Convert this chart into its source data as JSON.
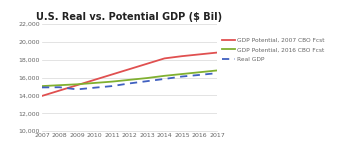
{
  "title": "U.S. Real vs. Potential GDP ($ Bil)",
  "years": [
    2007,
    2008,
    2009,
    2010,
    2011,
    2012,
    2013,
    2014,
    2015,
    2016,
    2017
  ],
  "gdp_potential_2007": [
    13950,
    14550,
    15150,
    15750,
    16350,
    16950,
    17550,
    18150,
    18400,
    18600,
    18800
  ],
  "gdp_potential_2016": [
    15050,
    15150,
    15250,
    15400,
    15550,
    15750,
    15950,
    16200,
    16400,
    16600,
    16800
  ],
  "real_gdp": [
    14900,
    14920,
    14680,
    14870,
    15050,
    15350,
    15600,
    15850,
    16120,
    16300,
    16500
  ],
  "ylim": [
    10000,
    22000
  ],
  "yticks": [
    10000,
    12000,
    14000,
    16000,
    18000,
    20000,
    22000
  ],
  "color_2007": "#e05050",
  "color_2016": "#80b030",
  "color_real": "#4060c0",
  "legend_2007": "GDP Potential, 2007 CBO Fcst",
  "legend_2016": "GDP Potential, 2016 CBO Fcst",
  "legend_real": "Real GDP",
  "background": "#ffffff",
  "grid_color": "#d8d8d8",
  "tick_color": "#666666",
  "title_color": "#222222"
}
